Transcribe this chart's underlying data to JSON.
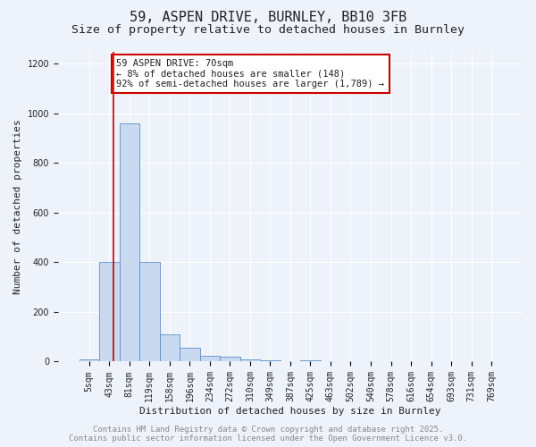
{
  "title_line1": "59, ASPEN DRIVE, BURNLEY, BB10 3FB",
  "title_line2": "Size of property relative to detached houses in Burnley",
  "xlabel": "Distribution of detached houses by size in Burnley",
  "ylabel": "Number of detached properties",
  "bin_labels": [
    "5sqm",
    "43sqm",
    "81sqm",
    "119sqm",
    "158sqm",
    "196sqm",
    "234sqm",
    "272sqm",
    "310sqm",
    "349sqm",
    "387sqm",
    "425sqm",
    "463sqm",
    "502sqm",
    "540sqm",
    "578sqm",
    "616sqm",
    "654sqm",
    "693sqm",
    "731sqm",
    "769sqm"
  ],
  "bar_values": [
    10,
    400,
    960,
    400,
    110,
    55,
    25,
    20,
    10,
    5,
    0,
    5,
    0,
    0,
    0,
    0,
    0,
    0,
    0,
    0,
    0
  ],
  "bar_color": "#c9d9f0",
  "bar_edge_color": "#5b8fc9",
  "annotation_box_color": "#ffffff",
  "annotation_box_edge": "#cc0000",
  "vline_color": "#cc0000",
  "ylim": [
    0,
    1250
  ],
  "yticks": [
    0,
    200,
    400,
    600,
    800,
    1000,
    1200
  ],
  "bin_edges": [
    5,
    43,
    81,
    119,
    158,
    196,
    234,
    272,
    310,
    349,
    387,
    425,
    463,
    502,
    540,
    578,
    616,
    654,
    693,
    731,
    769
  ],
  "property_sqm": 70,
  "footer_line1": "Contains HM Land Registry data © Crown copyright and database right 2025.",
  "footer_line2": "Contains public sector information licensed under the Open Government Licence v3.0.",
  "bg_color": "#eef2fb",
  "grid_color": "#ffffff",
  "font_color": "#222222",
  "title_fontsize": 11,
  "subtitle_fontsize": 9.5,
  "axis_label_fontsize": 8,
  "tick_fontsize": 7,
  "footer_fontsize": 6.5,
  "annot_fontsize": 7.5
}
